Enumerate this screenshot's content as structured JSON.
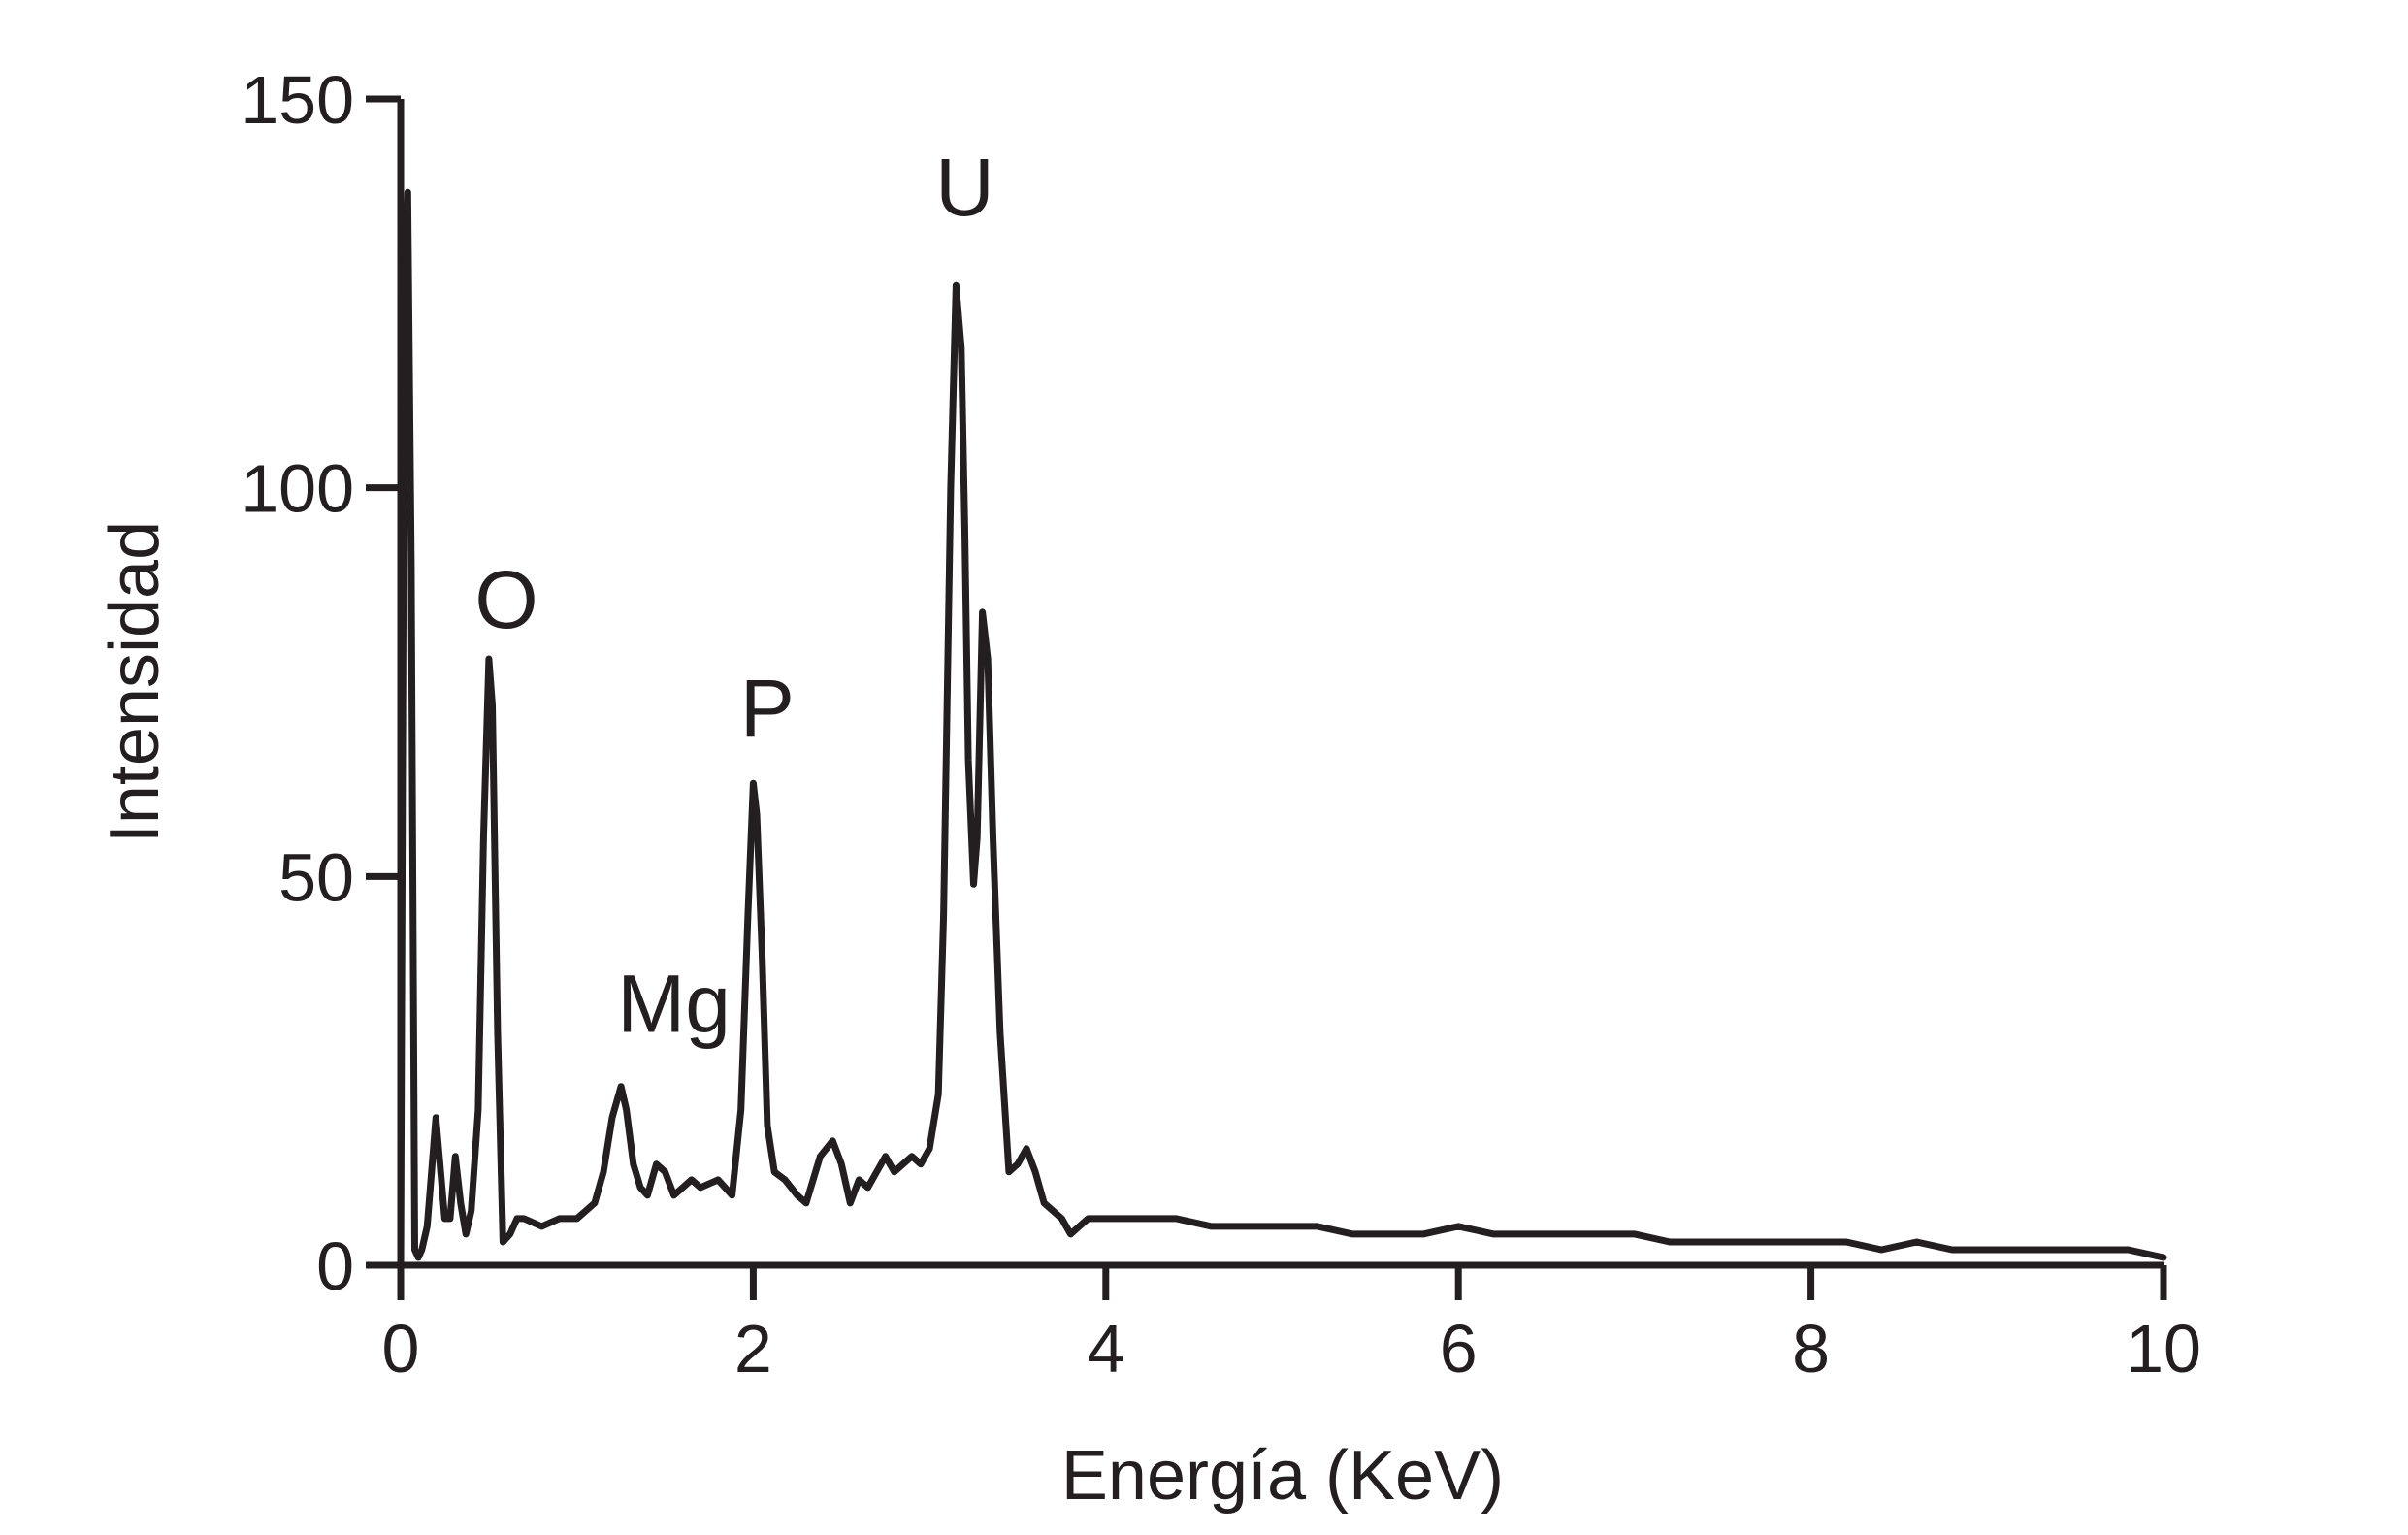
{
  "chart_data": {
    "type": "line",
    "title": "",
    "xlabel": "Energía (KeV)",
    "ylabel": "Intensidad",
    "xlim": [
      0,
      10
    ],
    "ylim": [
      0,
      150
    ],
    "xticks": [
      "0",
      "2",
      "4",
      "6",
      "8",
      "10"
    ],
    "yticks": [
      "0",
      "50",
      "100",
      "150"
    ],
    "grid": false,
    "legend": "none",
    "line_color": "#231f20",
    "annotations": [
      {
        "text": "O",
        "x": 0.6,
        "y": 82
      },
      {
        "text": "Mg",
        "x": 1.55,
        "y": 30
      },
      {
        "text": "P",
        "x": 2.08,
        "y": 68
      },
      {
        "text": "U",
        "x": 3.2,
        "y": 135
      }
    ],
    "series": [
      {
        "x": [
          0.0,
          0.02,
          0.04,
          0.06,
          0.08,
          0.1,
          0.12,
          0.15,
          0.2,
          0.25,
          0.28,
          0.31,
          0.34,
          0.37,
          0.4,
          0.44,
          0.47,
          0.5,
          0.52,
          0.55,
          0.58,
          0.62,
          0.66,
          0.7,
          0.8,
          0.9,
          1.0,
          1.1,
          1.15,
          1.2,
          1.25,
          1.28,
          1.32,
          1.36,
          1.4,
          1.45,
          1.5,
          1.55,
          1.6,
          1.65,
          1.7,
          1.8,
          1.88,
          1.93,
          1.97,
          2.0,
          2.02,
          2.05,
          2.08,
          2.12,
          2.18,
          2.25,
          2.3,
          2.38,
          2.45,
          2.5,
          2.55,
          2.6,
          2.65,
          2.7,
          2.75,
          2.8,
          2.85,
          2.9,
          2.95,
          3.0,
          3.05,
          3.08,
          3.12,
          3.15,
          3.18,
          3.2,
          3.22,
          3.25,
          3.27,
          3.3,
          3.33,
          3.36,
          3.4,
          3.45,
          3.5,
          3.55,
          3.6,
          3.65,
          3.7,
          3.75,
          3.8,
          3.85,
          3.9,
          4.0,
          4.2,
          4.4,
          4.6,
          4.8,
          5.0,
          5.2,
          5.4,
          5.6,
          5.8,
          6.0,
          6.2,
          6.4,
          6.6,
          6.8,
          7.0,
          7.2,
          7.4,
          7.6,
          7.8,
          8.0,
          8.2,
          8.4,
          8.6,
          8.8,
          9.0,
          9.2,
          9.4,
          9.6,
          9.8,
          10.0
        ],
        "y": [
          0,
          120,
          138,
          90,
          2,
          1,
          2,
          5,
          19,
          6,
          6,
          14,
          8,
          4,
          7,
          20,
          55,
          78,
          72,
          30,
          3,
          4,
          6,
          6,
          5,
          6,
          6,
          8,
          12,
          19,
          23,
          20,
          13,
          10,
          9,
          13,
          12,
          9,
          10,
          11,
          10,
          11,
          9,
          20,
          45,
          62,
          58,
          40,
          18,
          12,
          11,
          9,
          8,
          14,
          16,
          13,
          8,
          11,
          10,
          12,
          14,
          12,
          13,
          14,
          13,
          15,
          22,
          45,
          100,
          126,
          118,
          95,
          65,
          49,
          55,
          84,
          78,
          55,
          30,
          12,
          13,
          15,
          12,
          8,
          7,
          6,
          4,
          5,
          6,
          6,
          6,
          6,
          5,
          5,
          5,
          5,
          4,
          4,
          4,
          5,
          4,
          4,
          4,
          4,
          4,
          3,
          3,
          3,
          3,
          3,
          3,
          2,
          3,
          2,
          2,
          2,
          2,
          2,
          2,
          1
        ]
      }
    ]
  }
}
